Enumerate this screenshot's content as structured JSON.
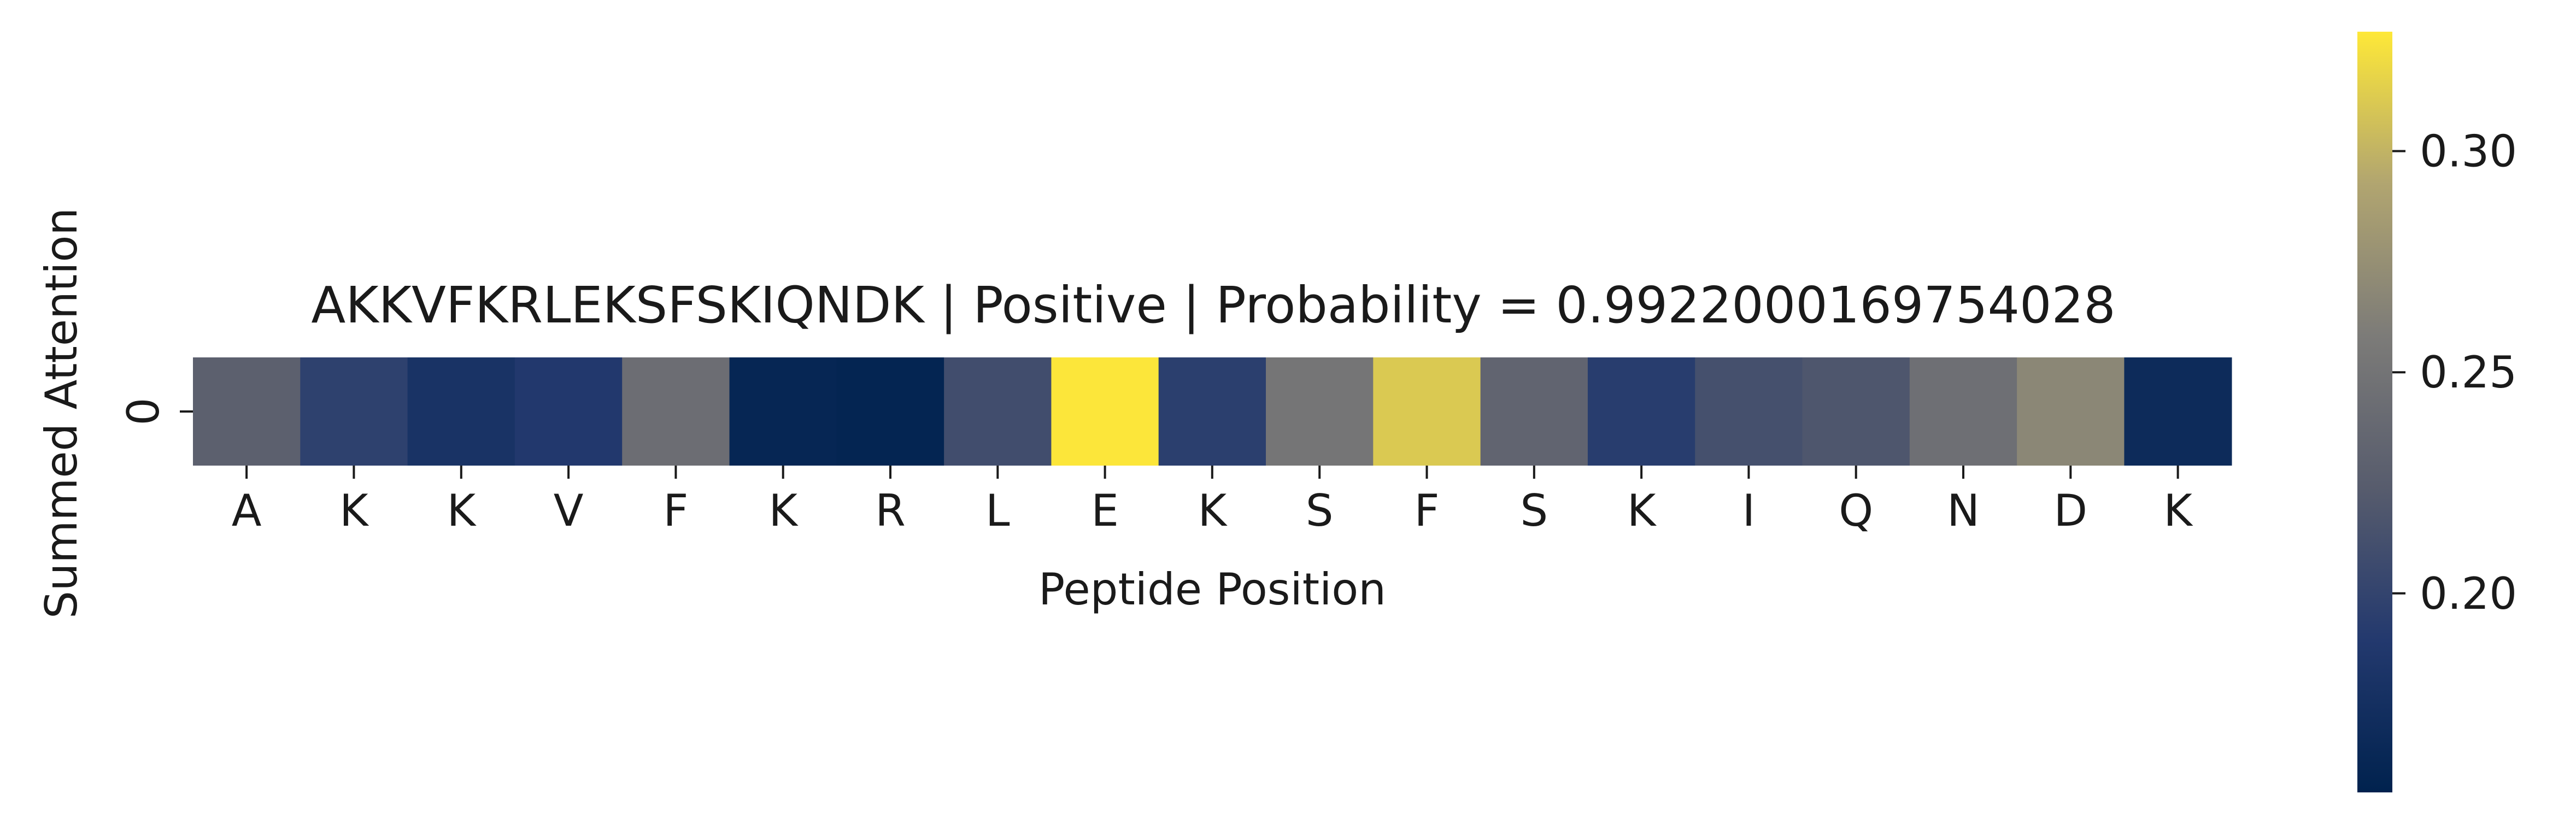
{
  "chart_data": {
    "type": "heatmap",
    "title": "AKKVFKRLEKSFSKIQNDK | Positive | Probability = 0.9922000169754028",
    "xlabel": "Peptide Position",
    "ylabel": "Summed Attention",
    "x_tick_labels": [
      "A",
      "K",
      "K",
      "V",
      "F",
      "K",
      "R",
      "L",
      "E",
      "K",
      "S",
      "F",
      "S",
      "K",
      "I",
      "Q",
      "N",
      "D",
      "K"
    ],
    "y_tick_labels": [
      "0"
    ],
    "values": [
      [
        0.228,
        0.197,
        0.18,
        0.188,
        0.243,
        0.161,
        0.159,
        0.209,
        0.326,
        0.195,
        0.252,
        0.311,
        0.233,
        0.193,
        0.212,
        0.218,
        0.245,
        0.268,
        0.168
      ]
    ],
    "colormap": "cividis",
    "colorbar": {
      "range": [
        0.155,
        0.327
      ],
      "ticks": [
        0.2,
        0.25,
        0.3
      ],
      "tick_labels": [
        "0.20",
        "0.25",
        "0.30"
      ]
    },
    "grid": false
  }
}
